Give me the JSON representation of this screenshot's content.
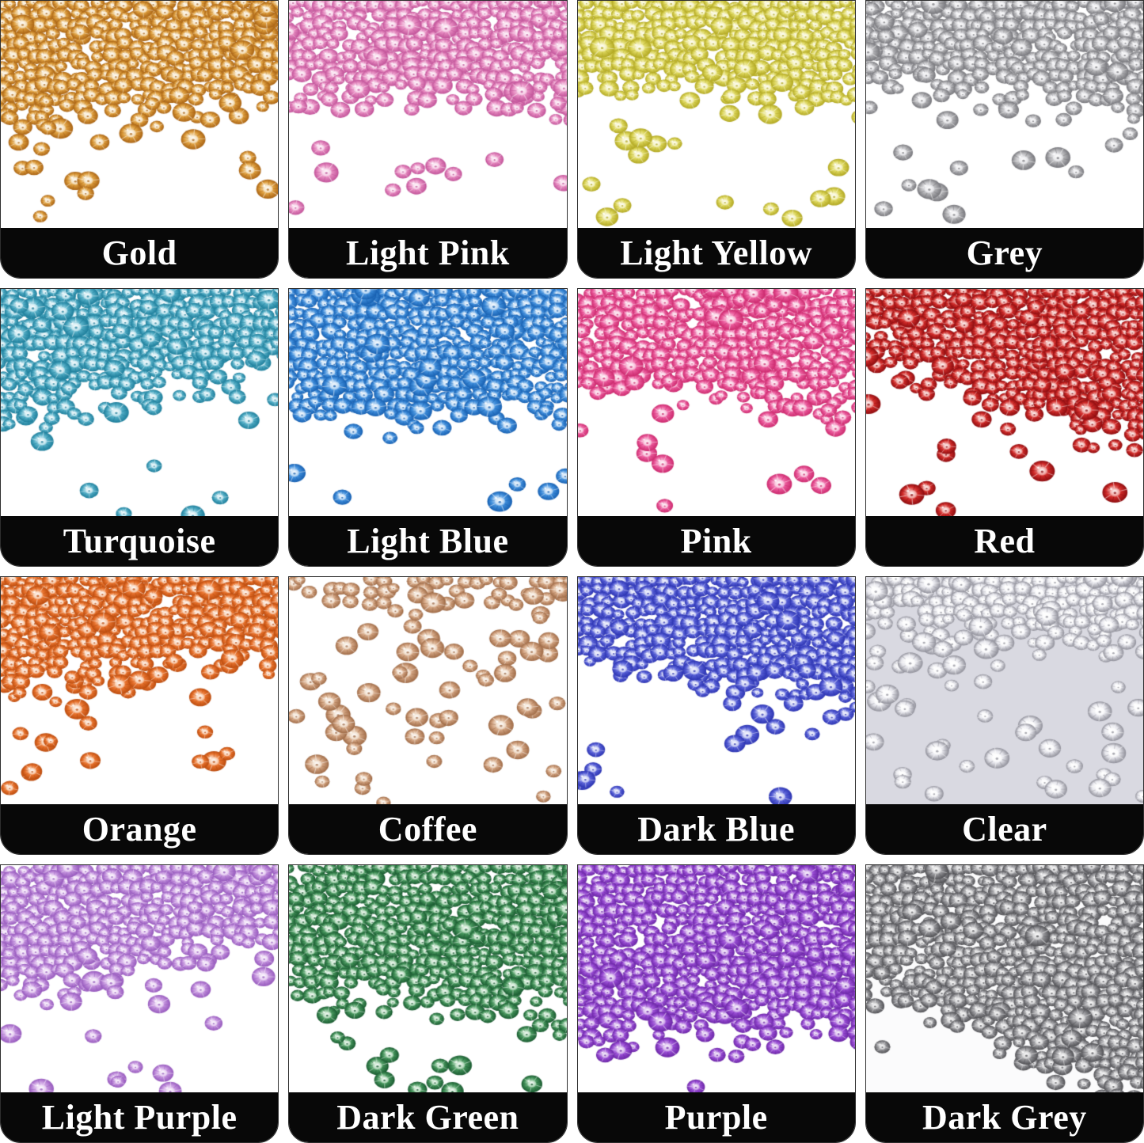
{
  "page": {
    "background": "#ffffff",
    "label_bar_color": "#080808",
    "label_text_color": "#ffffff"
  },
  "grid": {
    "rows": 4,
    "cols": 4,
    "tiles": [
      {
        "label": "Gold",
        "base": "#dfa040",
        "dark": "#aa6414",
        "light": "#f9ecd2",
        "bg": "#ffffff",
        "fill": 0.55,
        "bias": -0.1,
        "sparse": 30
      },
      {
        "label": "Light Pink",
        "base": "#e78cc1",
        "dark": "#c2549a",
        "light": "#fadcee",
        "bg": "#ffffff",
        "fill": 0.48,
        "bias": 0.05,
        "sparse": 26
      },
      {
        "label": "Light Yellow",
        "base": "#ddd75e",
        "dark": "#b2a822",
        "light": "#f8f5cb",
        "bg": "#ffffff",
        "fill": 0.44,
        "bias": 0.1,
        "sparse": 26
      },
      {
        "label": "Grey",
        "base": "#b5b5b8",
        "dark": "#77777c",
        "light": "#efeff2",
        "bg": "#ffffff",
        "fill": 0.46,
        "bias": 0.1,
        "sparse": 28
      },
      {
        "label": "Turquoise",
        "base": "#54aec6",
        "dark": "#1d7e9b",
        "light": "#d3eef5",
        "bg": "#ffffff",
        "fill": 0.52,
        "bias": -0.25,
        "sparse": 30
      },
      {
        "label": "Light Blue",
        "base": "#418fdc",
        "dark": "#1861b2",
        "light": "#cfe5f9",
        "bg": "#ffffff",
        "fill": 0.58,
        "bias": 0.0,
        "sparse": 30
      },
      {
        "label": "Pink",
        "base": "#ec5d9e",
        "dark": "#cc2a6e",
        "light": "#fbd2e5",
        "bg": "#ffffff",
        "fill": 0.52,
        "bias": 0.15,
        "sparse": 26
      },
      {
        "label": "Red",
        "base": "#d22c2a",
        "dark": "#8e0d10",
        "light": "#f5bab6",
        "bg": "#ffffff",
        "fill": 0.56,
        "bias": 0.35,
        "sparse": 26
      },
      {
        "label": "Orange",
        "base": "#e9742f",
        "dark": "#bc4c0e",
        "light": "#fbdac2",
        "bg": "#ffffff",
        "fill": 0.48,
        "bias": -0.15,
        "sparse": 30
      },
      {
        "label": "Coffee",
        "base": "#d4a684",
        "dark": "#a06c48",
        "light": "#f5e6d6",
        "bg": "#ffffff",
        "fill": 0.1,
        "bias": 0.2,
        "sparse": 60
      },
      {
        "label": "Dark Blue",
        "base": "#5a62d8",
        "dark": "#2c34b2",
        "light": "#dadef9",
        "bg": "#ffffff",
        "fill": 0.52,
        "bias": 0.15,
        "sparse": 26
      },
      {
        "label": "Clear",
        "base": "#e6e6ec",
        "dark": "#90909a",
        "light": "#ffffff",
        "bg": "#d9d9e1",
        "fill": 0.3,
        "bias": 0.25,
        "sparse": 60
      },
      {
        "label": "Light Purple",
        "base": "#c392dd",
        "dark": "#9659bd",
        "light": "#efdcf7",
        "bg": "#ffffff",
        "fill": 0.5,
        "bias": -0.25,
        "sparse": 30
      },
      {
        "label": "Dark Green",
        "base": "#45945b",
        "dark": "#1b5c32",
        "light": "#c5e6cb",
        "bg": "#ffffff",
        "fill": 0.66,
        "bias": 0.1,
        "sparse": 24
      },
      {
        "label": "Purple",
        "base": "#9b4fd6",
        "dark": "#6b26a6",
        "light": "#ddc2f0",
        "bg": "#ffffff",
        "fill": 0.78,
        "bias": 0.0,
        "sparse": 20
      },
      {
        "label": "Dark Grey",
        "base": "#98989c",
        "dark": "#515155",
        "light": "#dededf",
        "bg": "#fbfbfc",
        "fill": 0.84,
        "bias": 0.3,
        "sparse": 22
      }
    ]
  }
}
